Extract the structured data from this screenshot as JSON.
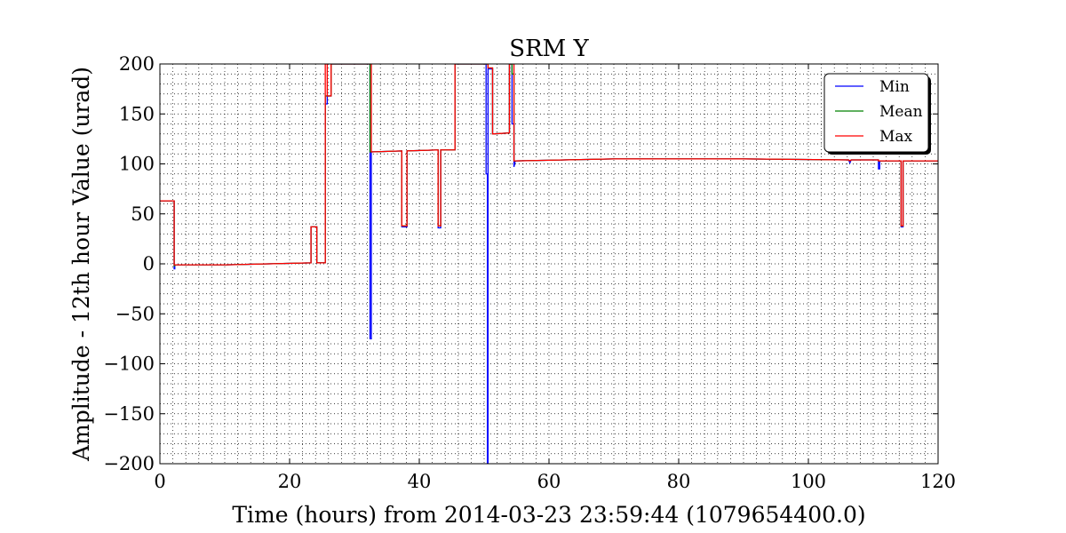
{
  "chart_data": {
    "type": "line",
    "title": "SRM Y",
    "xlabel": "Time (hours) from 2014-03-23 23:59:44 (1079654400.0)",
    "ylabel": "Amplitude - 12th hour Value (urad)",
    "xlim": [
      0,
      120
    ],
    "ylim": [
      -200,
      200
    ],
    "x_ticks": [
      0,
      20,
      40,
      60,
      80,
      100,
      120
    ],
    "y_ticks": [
      -200,
      -150,
      -100,
      -50,
      0,
      50,
      100,
      150,
      200
    ],
    "x_tick_labels": [
      "0",
      "20",
      "40",
      "60",
      "80",
      "100",
      "120"
    ],
    "y_tick_labels": [
      "−200",
      "−150",
      "−100",
      "−50",
      "0",
      "50",
      "100",
      "150",
      "200"
    ],
    "grid": true,
    "legend_position": "top-right",
    "series": [
      {
        "name": "Min",
        "color": "#0000ff",
        "x": [
          0,
          2.2,
          2.2,
          2.3,
          2.3,
          10,
          23.3,
          23.3,
          24.2,
          24.2,
          25.5,
          25.5,
          25.8,
          25.8,
          26.4,
          26.4,
          27,
          32.4,
          32.4,
          32.6,
          32.6,
          37.3,
          37.3,
          38.1,
          38.1,
          42.9,
          42.9,
          43.3,
          43.3,
          45.5,
          45.5,
          50.3,
          50.3,
          50.5,
          50.5,
          50.6,
          50.6,
          51.3,
          51.3,
          53.9,
          53.9,
          54.3,
          54.3,
          54.6,
          54.6,
          54.8,
          70,
          90,
          106.2,
          106.4,
          106.6,
          110.8,
          110.8,
          111.0,
          111.0,
          114.3,
          114.3,
          114.6,
          114.6,
          120
        ],
        "y": [
          63,
          63,
          -5,
          -5,
          -1,
          -1,
          1,
          37,
          37,
          1,
          1,
          160,
          160,
          168,
          168,
          200,
          200,
          200,
          -75,
          -75,
          112,
          113,
          37,
          37,
          113,
          114,
          36,
          36,
          114,
          114,
          200,
          200,
          90,
          90,
          -200,
          -200,
          195,
          195,
          130,
          131,
          200,
          200,
          140,
          140,
          97,
          103,
          105,
          105,
          104,
          101,
          104,
          104,
          95,
          95,
          103,
          103,
          37,
          37,
          103,
          103
        ]
      },
      {
        "name": "Mean",
        "color": "#008000",
        "x": [
          0,
          2.2,
          2.2,
          2.3,
          2.3,
          10,
          23.3,
          23.3,
          24.2,
          24.2,
          25.5,
          25.5,
          25.8,
          25.8,
          26.4,
          26.4,
          27,
          32.4,
          32.4,
          32.6,
          32.6,
          37.3,
          37.3,
          38.1,
          38.1,
          42.9,
          42.9,
          43.3,
          43.3,
          45.5,
          45.5,
          50.3,
          50.3,
          50.5,
          50.5,
          50.6,
          50.6,
          51.3,
          51.3,
          53.9,
          53.9,
          54.3,
          54.3,
          54.6,
          54.6,
          54.8,
          70,
          90,
          106.2,
          106.4,
          106.6,
          110.8,
          110.8,
          111.0,
          111.0,
          114.3,
          114.3,
          114.6,
          114.6,
          120
        ],
        "y": [
          63,
          63,
          -2,
          -2,
          -1,
          -1,
          1,
          37,
          37,
          1,
          1,
          168,
          168,
          168,
          168,
          200,
          200,
          200,
          112,
          112,
          112,
          113,
          38,
          38,
          113,
          114,
          38,
          38,
          114,
          114,
          200,
          200,
          200,
          200,
          200,
          200,
          196,
          196,
          130,
          131,
          200,
          200,
          190,
          190,
          103,
          103,
          105,
          105,
          104,
          103,
          104,
          104,
          103,
          103,
          103,
          103,
          38,
          38,
          103,
          103
        ]
      },
      {
        "name": "Max",
        "color": "#ff0000",
        "x": [
          0,
          2.2,
          2.2,
          2.3,
          2.3,
          10,
          23.3,
          23.3,
          24.2,
          24.2,
          25.5,
          25.5,
          25.8,
          25.8,
          26.4,
          26.4,
          27,
          32.4,
          32.4,
          32.6,
          32.6,
          37.3,
          37.3,
          38.1,
          38.1,
          42.9,
          42.9,
          43.3,
          43.3,
          45.5,
          45.5,
          50.3,
          50.3,
          50.5,
          50.5,
          50.6,
          50.6,
          51.3,
          51.3,
          53.9,
          53.9,
          54.3,
          54.3,
          54.6,
          54.6,
          54.8,
          70,
          90,
          106.2,
          106.4,
          106.6,
          110.8,
          110.8,
          111.0,
          111.0,
          114.3,
          114.3,
          114.6,
          114.6,
          120
        ],
        "y": [
          63,
          63,
          -1,
          -1,
          -1,
          -1,
          1,
          37,
          37,
          1,
          1,
          200,
          200,
          168,
          168,
          200,
          200,
          200,
          200,
          200,
          112,
          113,
          38,
          38,
          113,
          114,
          38,
          38,
          114,
          114,
          200,
          200,
          200,
          200,
          200,
          200,
          196,
          196,
          130,
          131,
          200,
          200,
          200,
          200,
          103,
          103,
          105,
          105,
          104,
          103,
          104,
          104,
          103,
          103,
          103,
          103,
          38,
          38,
          103,
          103
        ]
      }
    ]
  }
}
